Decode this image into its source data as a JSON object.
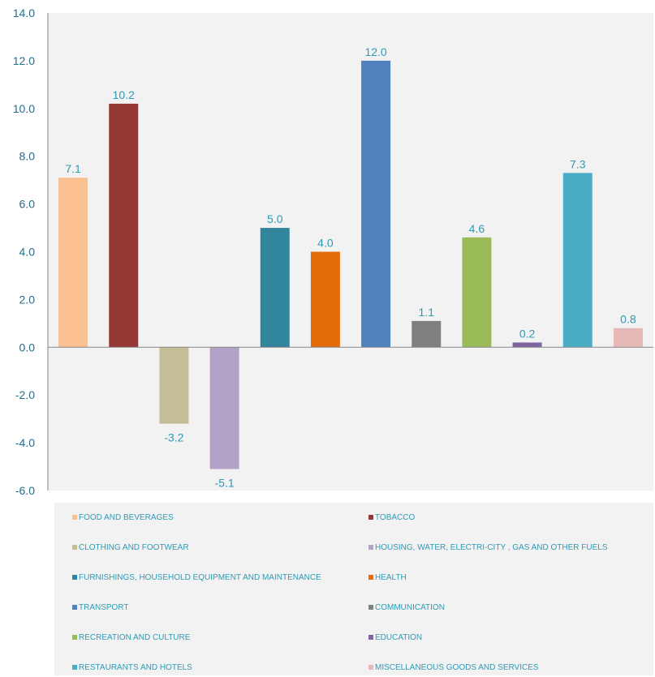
{
  "chart_data": {
    "type": "bar",
    "title": "",
    "xlabel": "",
    "ylabel": "",
    "ylim": [
      -6.0,
      14.0
    ],
    "yticks": [
      "14.0",
      "12.0",
      "10.0",
      "8.0",
      "6.0",
      "4.0",
      "2.0",
      "0.0",
      "-2.0",
      "-4.0",
      "-6.0"
    ],
    "grid": false,
    "legend_position": "bottom",
    "categories": [
      "FOOD AND BEVERAGES",
      "TOBACCO",
      "CLOTHING AND FOOTWEAR",
      "HOUSING, WATER, ELECTRI-CITY , GAS AND OTHER FUELS",
      "FURNISHINGS, HOUSEHOLD EQUIPMENT AND MAINTENANCE",
      "HEALTH",
      "TRANSPORT",
      "COMMUNICATION",
      "RECREATION AND CULTURE",
      "EDUCATION",
      "RESTAURANTS AND HOTELS",
      "MISCELLANEOUS GOODS AND SERVICES"
    ],
    "values": [
      7.1,
      10.2,
      -3.2,
      -5.1,
      5.0,
      4.0,
      12.0,
      1.1,
      4.6,
      0.2,
      7.3,
      0.8
    ],
    "value_labels": [
      "7.1",
      "10.2",
      "-3.2",
      "-5.1",
      "5.0",
      "4.0",
      "12.0",
      "1.1",
      "4.6",
      "0.2",
      "7.3",
      "0.8"
    ],
    "colors": [
      "#fac090",
      "#953735",
      "#c4bd97",
      "#b3a2c7",
      "#31859c",
      "#e46c0a",
      "#4f81bd",
      "#7f7f7f",
      "#9bbb59",
      "#8064a2",
      "#4bacc6",
      "#e6b9b8"
    ],
    "label_color": "#2e9ab4"
  }
}
